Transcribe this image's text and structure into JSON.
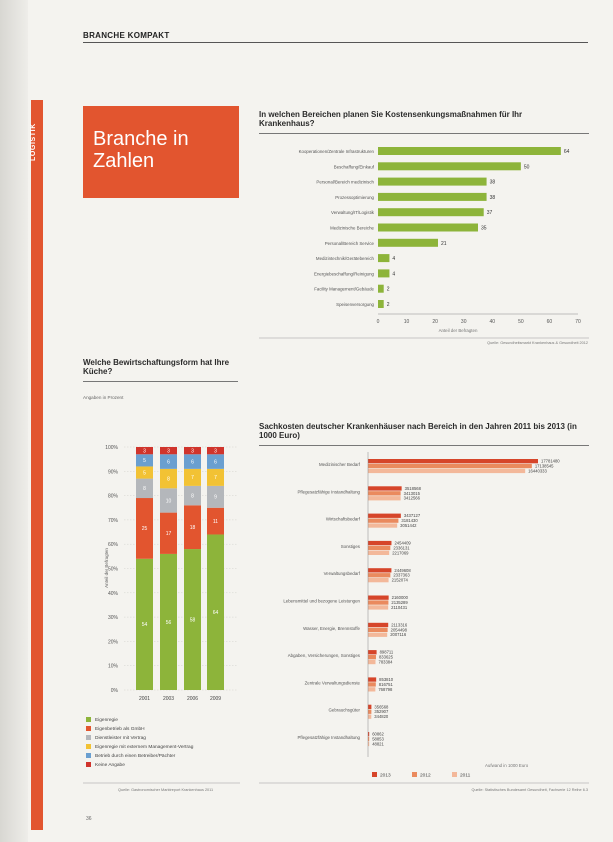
{
  "page": {
    "section_label": "BRANCHE KOMPAKT",
    "side_tab": "LOGISTIK",
    "hero_title": "Branche in Zahlen",
    "page_number": "36"
  },
  "chart_data": [
    {
      "type": "bar",
      "orientation": "horizontal",
      "title": "In welchen Bereichen planen Sie Kostensenkungsmaßnahmen für Ihr Krankenhaus?",
      "categories": [
        "Kooperationen/Zentrale Infrastrukturen",
        "Beschaffung/Einkauf",
        "Personal/Bereich medizinisch",
        "Prozessoptimierung",
        "Verwaltung/IT/Logistik",
        "Medizinische Bereiche",
        "Personal/Bereich Service",
        "Medizintechnik/Gerätebereich",
        "Energiebeschaffung/Reinigung",
        "Facility Management/Gebäude",
        "Speisenversorgung"
      ],
      "values": [
        64,
        50,
        38,
        38,
        37,
        35,
        21,
        4,
        4,
        2,
        2
      ],
      "xlim": [
        0,
        70
      ],
      "xticks": [
        0,
        10,
        20,
        30,
        40,
        50,
        60,
        70
      ],
      "xlabel": "Anteil der Befragten",
      "source": "Quelle: Gesundheitsmarkt Krankenhaus & Gesundheit 2012",
      "color": "#8db43a"
    },
    {
      "type": "bar",
      "orientation": "vertical-stacked",
      "title": "Welche Bewirtschaftungsform hat Ihre Küche?",
      "subtitle": "Angaben in Prozent",
      "categories": [
        "2001",
        "2003",
        "2006",
        "2009"
      ],
      "ylim": [
        0,
        100
      ],
      "yticks": [
        "0%",
        "10%",
        "20%",
        "30%",
        "40%",
        "50%",
        "60%",
        "70%",
        "80%",
        "90%",
        "100%"
      ],
      "ylabel": "Anteil der Befragten",
      "series": [
        {
          "name": "Eigenregie",
          "color": "#8db43a",
          "values": [
            54,
            56,
            58,
            64
          ]
        },
        {
          "name": "Eigenbetrieb als GmbH",
          "color": "#e2552f",
          "values": [
            25,
            17,
            18,
            11
          ]
        },
        {
          "name": "Dienstleister mit Vertrag",
          "color": "#b4b7bb",
          "values": [
            8,
            10,
            8,
            9
          ]
        },
        {
          "name": "Eigenregie mit externem Management-Vertrag",
          "color": "#f2c234",
          "values": [
            5,
            8,
            7,
            7
          ]
        },
        {
          "name": "Betrieb durch einen Betreiber/Pächter",
          "color": "#6a9fd0",
          "values": [
            5,
            6,
            6,
            6
          ]
        },
        {
          "name": "Keine Angabe",
          "color": "#d0342c",
          "values": [
            3,
            3,
            3,
            3
          ]
        }
      ],
      "source": "Quelle: Gastronomischer Marktreport Krankenhaus 2011"
    },
    {
      "type": "bar",
      "orientation": "horizontal-grouped",
      "title": "Sachkosten deutscher Krankenhäuser nach Bereich in den Jahren 2011 bis 2013 (in 1000 Euro)",
      "categories": [
        "Medizinischer Bedarf",
        "Pflegesatzfähige Instandhaltung",
        "Wirtschaftsbedarf",
        "Sonstiges",
        "Verwaltungsbedarf",
        "Lebensmittel und bezogene Leistungen",
        "Wasser, Energie, Brennstoffe",
        "Abgaben, Versicherungen, Sonstiges",
        "Zentrale Verwaltungsdienste",
        "Gebrauchsgüter",
        "Pflegesatzfähige Instandhaltung"
      ],
      "series": [
        {
          "name": "2013",
          "color": "#d6452a",
          "values": [
            17781480,
            3518568,
            3437127,
            2454409,
            2449608,
            2160000,
            2113316,
            898711,
            853810,
            356568,
            60862
          ]
        },
        {
          "name": "2012",
          "color": "#ea8a5e",
          "values": [
            17138545,
            3413015,
            3181430,
            2336131,
            2337363,
            2135289,
            2054498,
            833625,
            816751,
            352907,
            58853
          ]
        },
        {
          "name": "2011",
          "color": "#f3b89a",
          "values": [
            16440333,
            3412566,
            3051442,
            2217069,
            2152074,
            2110431,
            2007116,
            783384,
            768798,
            344820,
            48821
          ]
        }
      ],
      "xlabel": "Aufwand in 1000 Euro",
      "source": "Quelle: Statistisches Bundesamt Gesundheit, Fachserie 12 Reihe 6.3"
    }
  ]
}
